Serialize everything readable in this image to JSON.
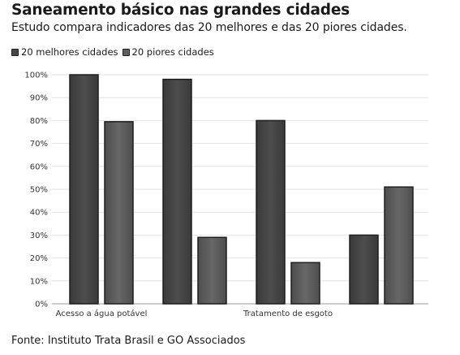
{
  "header": {
    "title": "Saneamento básico nas grandes cidades",
    "subtitle": "Estudo compara indicadores das 20 melhores e das 20 piores cidades."
  },
  "footer": {
    "source": "Fonte: Instituto Trata Brasil e GO Associados"
  },
  "chart_data": {
    "type": "bar",
    "title": "Saneamento básico nas grandes cidades",
    "subtitle": "Estudo compara indicadores das 20 melhores e das 20 piores cidades.",
    "categories": [
      "Acesso a água potável",
      "",
      "Tratamento de esgoto",
      ""
    ],
    "series": [
      {
        "name": "20 melhores cidades",
        "values": [
          100,
          98,
          80,
          30
        ],
        "color": "#474747"
      },
      {
        "name": "20 piores cidades",
        "values": [
          79.5,
          29,
          18,
          51
        ],
        "color": "#5e5e5e"
      }
    ],
    "yticks": [
      "0%",
      "10%",
      "20%",
      "30%",
      "40%",
      "50%",
      "60%",
      "70%",
      "80%",
      "90%",
      "100%"
    ],
    "ylim": [
      0,
      100
    ],
    "xlabel": "",
    "ylabel": "",
    "grid": true,
    "legend_position": "top-left"
  }
}
